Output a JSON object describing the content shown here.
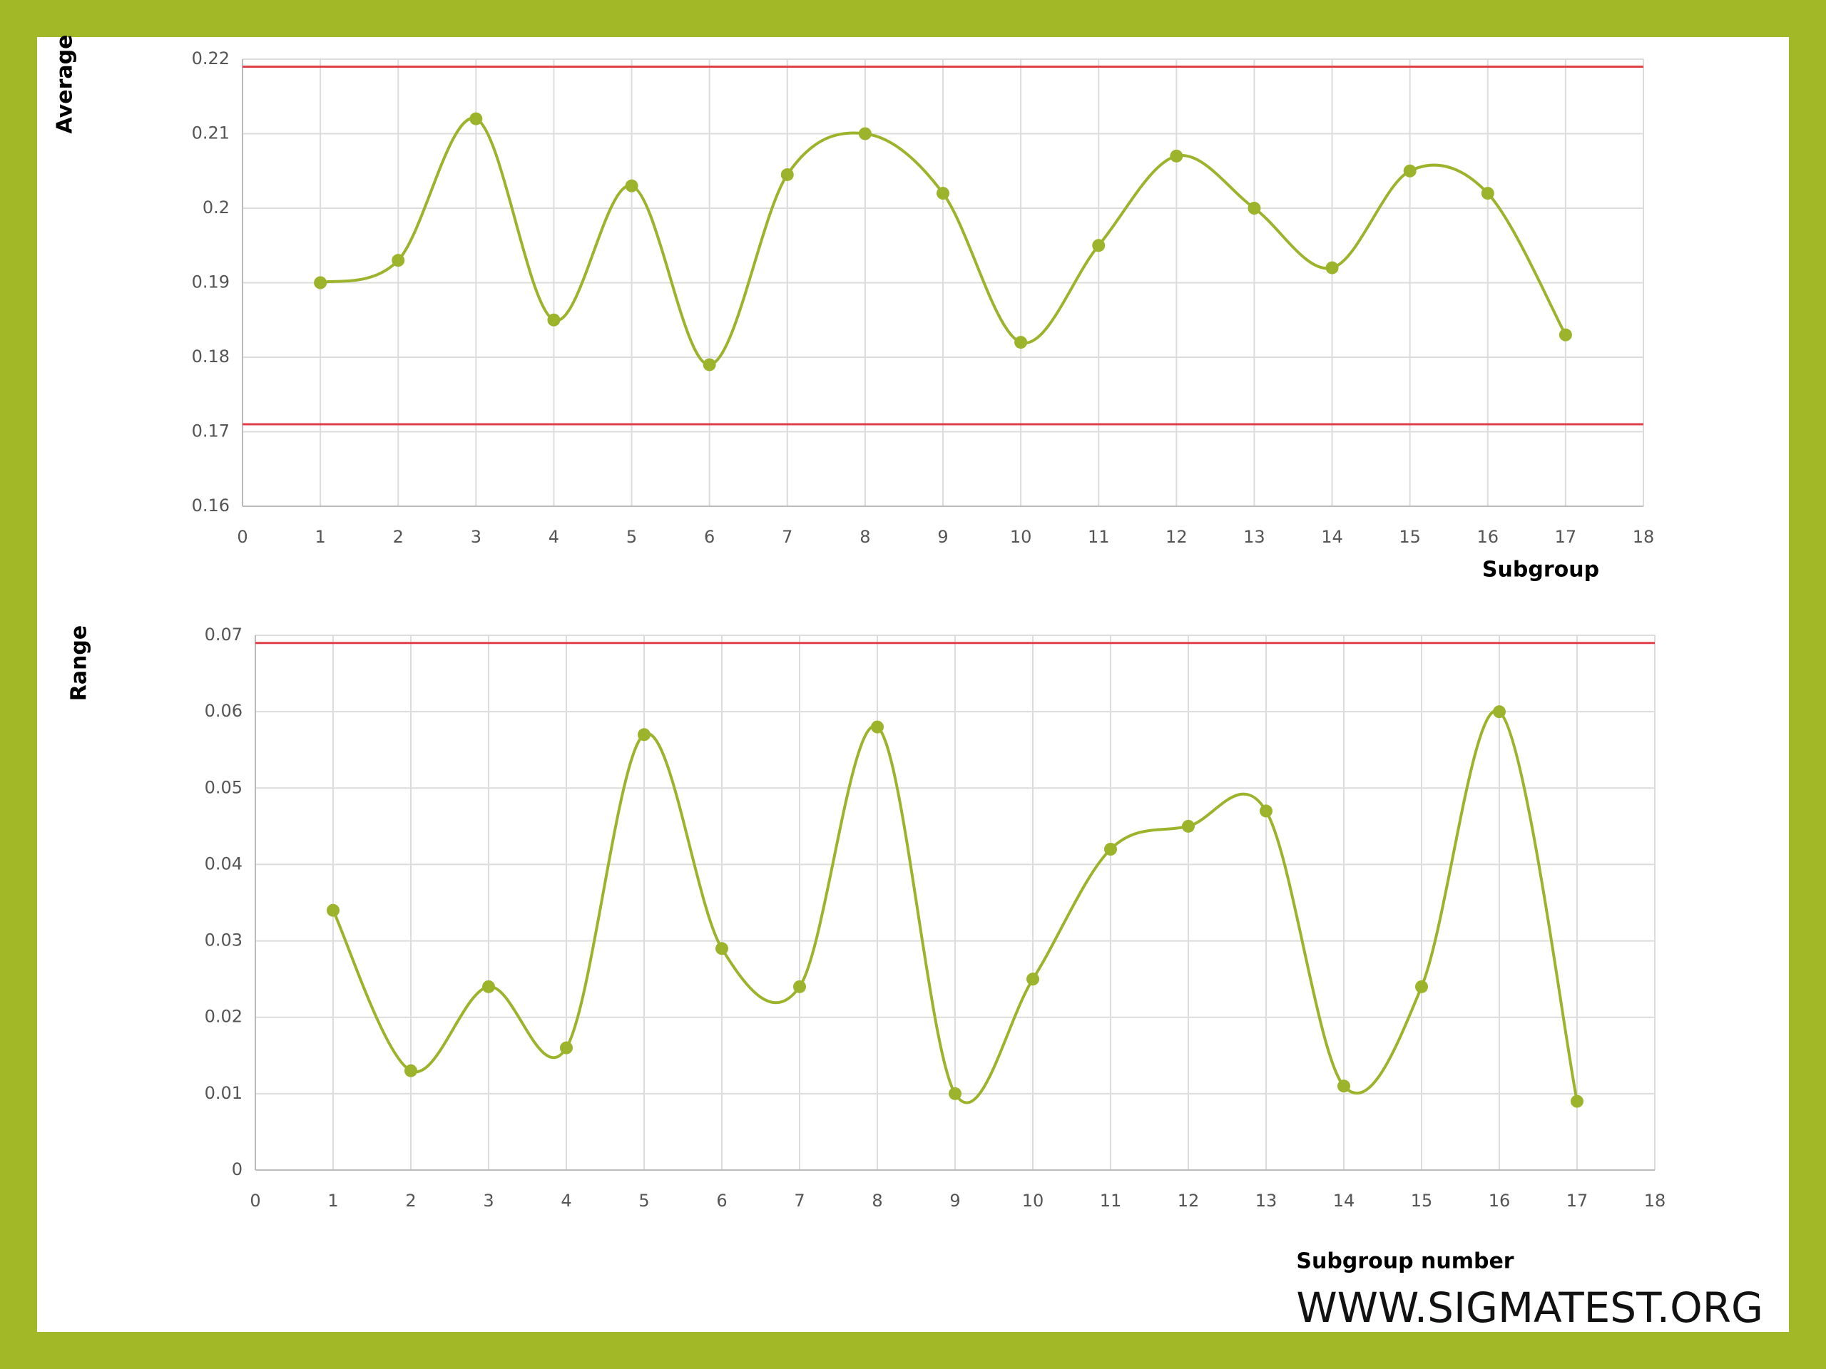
{
  "chart_data": [
    {
      "type": "line",
      "y_label": "Average",
      "x_label": "Subgroup",
      "x": [
        1,
        2,
        3,
        4,
        5,
        6,
        7,
        8,
        9,
        10,
        11,
        12,
        13,
        14,
        15,
        16,
        17
      ],
      "series": [
        {
          "color": "#9cb32c",
          "values": [
            0.19,
            0.193,
            0.212,
            0.185,
            0.203,
            0.179,
            0.2045,
            0.21,
            0.202,
            0.182,
            0.195,
            0.207,
            0.2,
            0.192,
            0.205,
            0.202,
            0.183
          ]
        }
      ],
      "limits": [
        0.219,
        0.171
      ],
      "limit_color": "#e0404a",
      "xlim": [
        0,
        18
      ],
      "xticks": [
        0,
        1,
        2,
        3,
        4,
        5,
        6,
        7,
        8,
        9,
        10,
        11,
        12,
        13,
        14,
        15,
        16,
        17,
        18
      ],
      "ylim": [
        0.16,
        0.22
      ],
      "yticks": [
        0.16,
        0.17,
        0.18,
        0.19,
        0.2,
        0.21,
        0.22
      ],
      "grid": true
    },
    {
      "type": "line",
      "y_label": "Range",
      "x_label": "Subgroup number",
      "x": [
        1,
        2,
        3,
        4,
        5,
        6,
        7,
        8,
        9,
        10,
        11,
        12,
        13,
        14,
        15,
        16,
        17
      ],
      "series": [
        {
          "color": "#9cb32c",
          "values": [
            0.034,
            0.013,
            0.024,
            0.016,
            0.057,
            0.029,
            0.024,
            0.058,
            0.01,
            0.025,
            0.042,
            0.045,
            0.047,
            0.011,
            0.024,
            0.06,
            0.009
          ]
        }
      ],
      "limits": [
        0.069
      ],
      "limit_color": "#e0404a",
      "xlim": [
        0,
        18
      ],
      "xticks": [
        0,
        1,
        2,
        3,
        4,
        5,
        6,
        7,
        8,
        9,
        10,
        11,
        12,
        13,
        14,
        15,
        16,
        17,
        18
      ],
      "ylim": [
        0,
        0.07
      ],
      "yticks": [
        0,
        0.01,
        0.02,
        0.03,
        0.04,
        0.05,
        0.06,
        0.07
      ],
      "grid": true
    }
  ],
  "footer": "WWW.SIGMATEST.ORG"
}
